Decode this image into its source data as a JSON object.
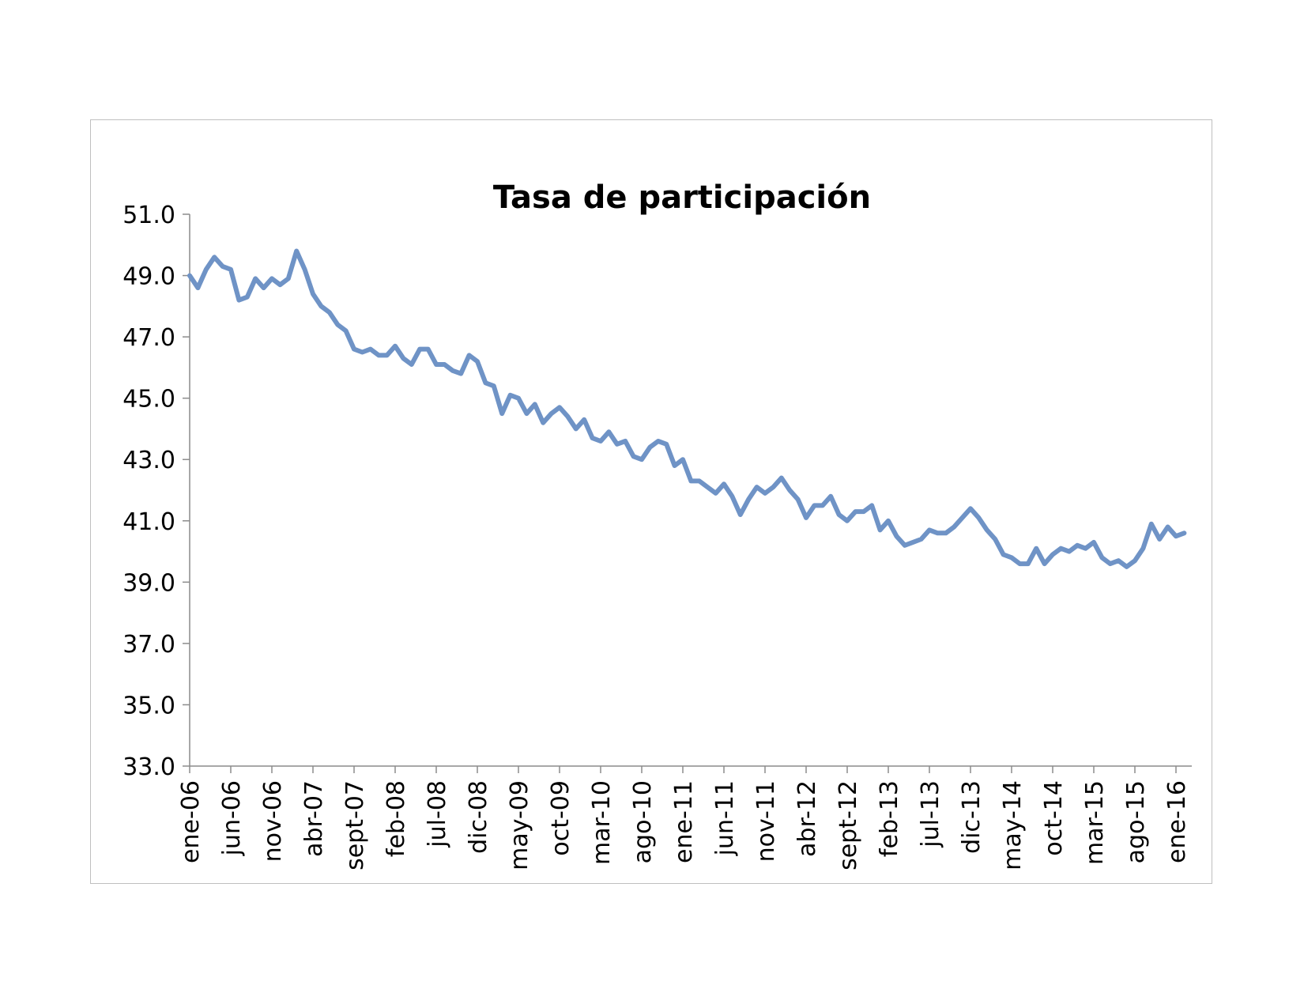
{
  "chart_data": {
    "type": "line",
    "title": "Tasa de participación",
    "xlabel": "",
    "ylabel": "",
    "ylim": [
      33,
      51
    ],
    "yticks": [
      "33.0",
      "35.0",
      "37.0",
      "39.0",
      "41.0",
      "43.0",
      "45.0",
      "47.0",
      "49.0",
      "51.0"
    ],
    "xtick_labels": [
      "ene-06",
      "jun-06",
      "nov-06",
      "abr-07",
      "sept-07",
      "feb-08",
      "jul-08",
      "dic-08",
      "may-09",
      "oct-09",
      "mar-10",
      "ago-10",
      "ene-11",
      "jun-11",
      "nov-11",
      "abr-12",
      "sept-12",
      "feb-13",
      "jul-13",
      "dic-13",
      "may-14",
      "oct-14",
      "mar-15",
      "ago-15",
      "ene-16"
    ],
    "grid": false,
    "legend": "none",
    "line_color": "#6f93c6",
    "series": [
      {
        "values": [
          49.0,
          48.6,
          49.2,
          49.6,
          49.3,
          49.2,
          48.2,
          48.3,
          48.9,
          48.6,
          48.9,
          48.7,
          48.9,
          49.8,
          49.2,
          48.4,
          48.0,
          47.8,
          47.4,
          47.2,
          46.6,
          46.5,
          46.6,
          46.4,
          46.4,
          46.7,
          46.3,
          46.1,
          46.6,
          46.6,
          46.1,
          46.1,
          45.9,
          45.8,
          46.4,
          46.2,
          45.5,
          45.4,
          44.5,
          45.1,
          45.0,
          44.5,
          44.8,
          44.2,
          44.5,
          44.7,
          44.4,
          44.0,
          44.3,
          43.7,
          43.6,
          43.9,
          43.5,
          43.6,
          43.1,
          43.0,
          43.4,
          43.6,
          43.5,
          42.8,
          43.0,
          42.3,
          42.3,
          42.1,
          41.9,
          42.2,
          41.8,
          41.2,
          41.7,
          42.1,
          41.9,
          42.1,
          42.4,
          42.0,
          41.7,
          41.1,
          41.5,
          41.5,
          41.8,
          41.2,
          41.0,
          41.3,
          41.3,
          41.5,
          40.7,
          41.0,
          40.5,
          40.2,
          40.3,
          40.4,
          40.7,
          40.6,
          40.6,
          40.8,
          41.1,
          41.4,
          41.1,
          40.7,
          40.4,
          39.9,
          39.8,
          39.6,
          39.6,
          40.1,
          39.6,
          39.9,
          40.1,
          40.0,
          40.2,
          40.1,
          40.3,
          39.8,
          39.6,
          39.7,
          39.5,
          39.7,
          40.1,
          40.9,
          40.4,
          40.8,
          40.5,
          40.6
        ]
      }
    ]
  }
}
